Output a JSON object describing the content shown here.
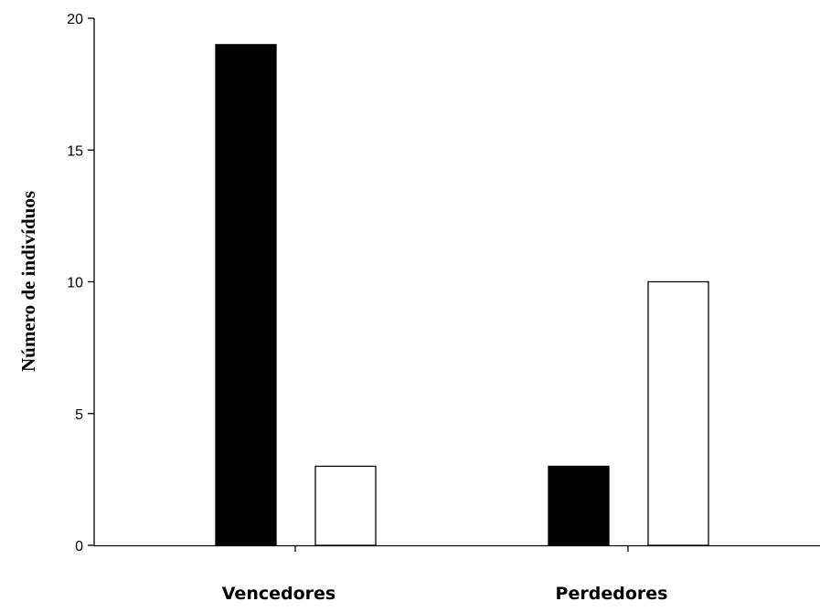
{
  "chart_data": {
    "type": "bar",
    "title": "",
    "xlabel": "",
    "ylabel": "Número de indivíduos",
    "categories": [
      "Vencedores",
      "Perdedores"
    ],
    "series": [
      {
        "color": "#000000",
        "values": [
          19,
          3
        ]
      },
      {
        "color": "#ffffff",
        "values": [
          3,
          10
        ]
      }
    ],
    "ylim": [
      0,
      20
    ],
    "yticks": [
      0,
      5,
      10,
      15,
      20
    ],
    "grid": false,
    "legend": "none"
  }
}
